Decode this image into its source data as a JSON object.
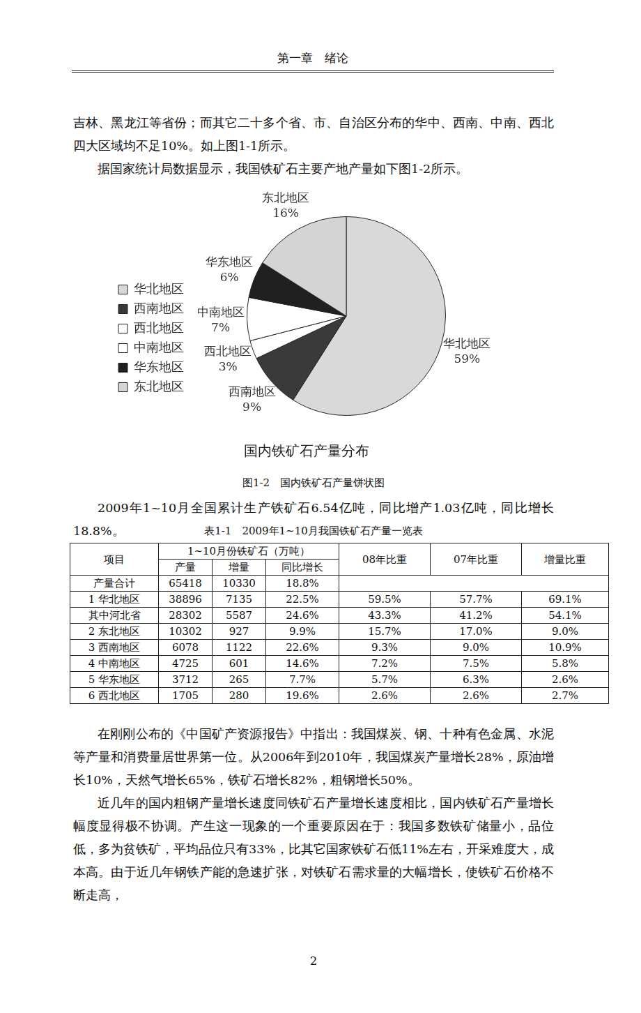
{
  "header": {
    "title": "第一章　绪论"
  },
  "paragraphs_before": [
    "吉林、黑龙江等省份；而其它二十多个省、市、自治区分布的华中、西南、中南、西北四大区域均不足10%。如上图1-1所示。",
    "据国家统计局数据显示，我国铁矿石主要产地产量如下图1-2所示。"
  ],
  "chart_data": {
    "type": "pie",
    "title": "国内铁矿石产量分布",
    "categories": [
      "华北地区",
      "西南地区",
      "西北地区",
      "中南地区",
      "华东地区",
      "东北地区"
    ],
    "values": [
      59,
      9,
      3,
      7,
      6,
      16
    ],
    "value_labels": [
      "59%",
      "9%",
      "3%",
      "7%",
      "6%",
      "16%"
    ],
    "colors": [
      "#d9d9d9",
      "#3a3a3a",
      "#ffffff",
      "#ffffff",
      "#202020",
      "#d4d4d4"
    ],
    "legend": "left",
    "data_labels": true
  },
  "figure_caption": "图1-2　国内铁矿石产量饼状图",
  "paragraphs_middle": [
    "2009年1~10月全国累计生产铁矿石6.54亿吨，同比增产1.03亿吨，同比增长18.8%。"
  ],
  "table": {
    "caption": "表1-1　2009年1~10月我国铁矿石产量一览表",
    "header_top": [
      "项目",
      "1~10月份铁矿石（万吨）",
      "08年比重",
      "07年比重",
      "增量比重"
    ],
    "header_sub": [
      "产量",
      "增量",
      "同比增长"
    ],
    "rows": [
      [
        "产量合计",
        "65418",
        "10330",
        "18.8%"
      ],
      [
        "1 华北地区",
        "38896",
        "7135",
        "22.5%",
        "59.5%",
        "57.7%",
        "69.1%"
      ],
      [
        "其中河北省",
        "28302",
        "5587",
        "24.6%",
        "43.3%",
        "41.2%",
        "54.1%"
      ],
      [
        "2 东北地区",
        "10302",
        "927",
        "9.9%",
        "15.7%",
        "17.0%",
        "9.0%"
      ],
      [
        "3 西南地区",
        "6078",
        "1122",
        "22.6%",
        "9.3%",
        "9.0%",
        "10.9%"
      ],
      [
        "4 中南地区",
        "4725",
        "601",
        "14.6%",
        "7.2%",
        "7.5%",
        "5.8%"
      ],
      [
        "5 华东地区",
        "3712",
        "265",
        "7.7%",
        "5.7%",
        "6.3%",
        "2.6%"
      ],
      [
        "6 西北地区",
        "1705",
        "280",
        "19.6%",
        "2.6%",
        "2.6%",
        "2.7%"
      ]
    ]
  },
  "paragraphs_after": [
    "在刚刚公布的《中国矿产资源报告》中指出：我国煤炭、钢、十种有色金属、水泥等产量和消费量居世界第一位。从2006年到2010年，我国煤炭产量增长28%，原油增长10%，天然气增长65%，铁矿石增长82%，粗钢增长50%。",
    "近几年的国内粗钢产量增长速度同铁矿石产量增长速度相比，国内铁矿石产量增长幅度显得极不协调。产生这一现象的一个重要原因在于：我国多数铁矿储量小，品位低，多为贫铁矿，平均品位只有33%，比其它国家铁矿石低11%左右，开采难度大，成本高。由于近几年钢铁产能的急速扩张，对铁矿石需求量的大幅增长，使铁矿石价格不断走高，"
  ],
  "page_number": "2"
}
